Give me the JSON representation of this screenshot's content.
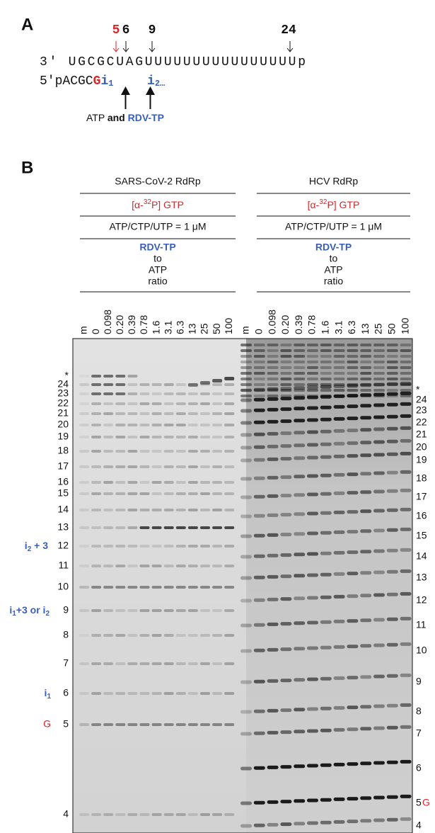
{
  "panel_a": {
    "label": "A",
    "positions": [
      "5",
      "6",
      "9",
      "24"
    ],
    "template": "3′ UGCGCUAGUUUUUUUUUUUUUUUUp",
    "primer": {
      "prefix": "5′pACGC",
      "g": "G",
      "i1": "i",
      "i1_sub": "1",
      "i2": "i",
      "i2_sub": "2…"
    },
    "caption": {
      "atp": "ATP",
      "and": "and",
      "rdv": "RDV-TP"
    }
  },
  "panel_b": {
    "label": "B",
    "groups": [
      {
        "title": "SARS-CoV-2 RdRp",
        "label_pre": "[α-",
        "label_sup": "32",
        "label_post": "P] GTP",
        "conditions": "ATP/CTP/UTP = 1 μM",
        "ratio": [
          "RDV-TP",
          "to",
          "ATP",
          "ratio"
        ],
        "lanes": [
          "m",
          "0",
          "0.098",
          "0.20",
          "0.39",
          "0.78",
          "1.6",
          "3.1",
          "6.3",
          "13",
          "25",
          "50",
          "100"
        ]
      },
      {
        "title": "HCV RdRp",
        "label_pre": "[α-",
        "label_sup": "32",
        "label_post": "P] GTP",
        "conditions": "ATP/CTP/UTP = 1 μM",
        "ratio": [
          "RDV-TP",
          "to",
          "ATP",
          "ratio"
        ],
        "lanes": [
          "m",
          "0",
          "0.098",
          "0.20",
          "0.39",
          "0.78",
          "1.6",
          "3.1",
          "6.3",
          "13",
          "25",
          "50",
          "100"
        ]
      }
    ],
    "left_markers": [
      "*",
      "24",
      "23",
      "22",
      "21",
      "20",
      "19",
      "18",
      "17",
      "16",
      "15",
      "14",
      "13",
      "12",
      "11",
      "10",
      "9",
      "8",
      "7",
      "6",
      "5",
      "4"
    ],
    "right_markers": [
      "*",
      "24",
      "23",
      "22",
      "21",
      "20",
      "19",
      "18",
      "17",
      "16",
      "15",
      "14",
      "13",
      "12",
      "11",
      "10",
      "9",
      "8",
      "7",
      "6",
      "5",
      "4"
    ],
    "right_g": "G",
    "annotations": {
      "a12": [
        "i",
        "2",
        " + 3"
      ],
      "a9": [
        "i",
        "1",
        "+3 or i",
        "2"
      ],
      "a6": [
        "i",
        "1"
      ],
      "a5": "G"
    }
  }
}
